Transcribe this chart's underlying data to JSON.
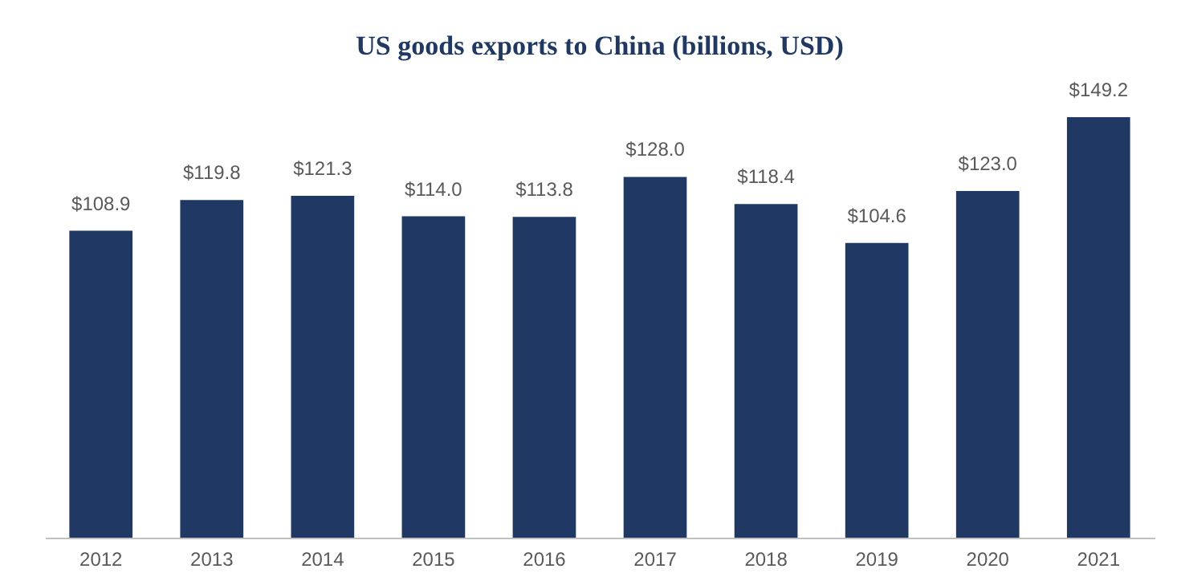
{
  "chart_data": {
    "type": "bar",
    "title": "US goods exports to China (billions, USD)",
    "categories": [
      "2012",
      "2013",
      "2014",
      "2015",
      "2016",
      "2017",
      "2018",
      "2019",
      "2020",
      "2021"
    ],
    "values": [
      108.9,
      119.8,
      121.3,
      114.0,
      113.8,
      128.0,
      118.4,
      104.6,
      123.0,
      149.2
    ],
    "value_labels": [
      "$108.9",
      "$119.8",
      "$121.3",
      "$114.0",
      "$113.8",
      "$128.0",
      "$118.4",
      "$104.6",
      "$123.0",
      "$149.2"
    ],
    "color": "#1f3864",
    "tick_labels": "x",
    "grid": false
  }
}
